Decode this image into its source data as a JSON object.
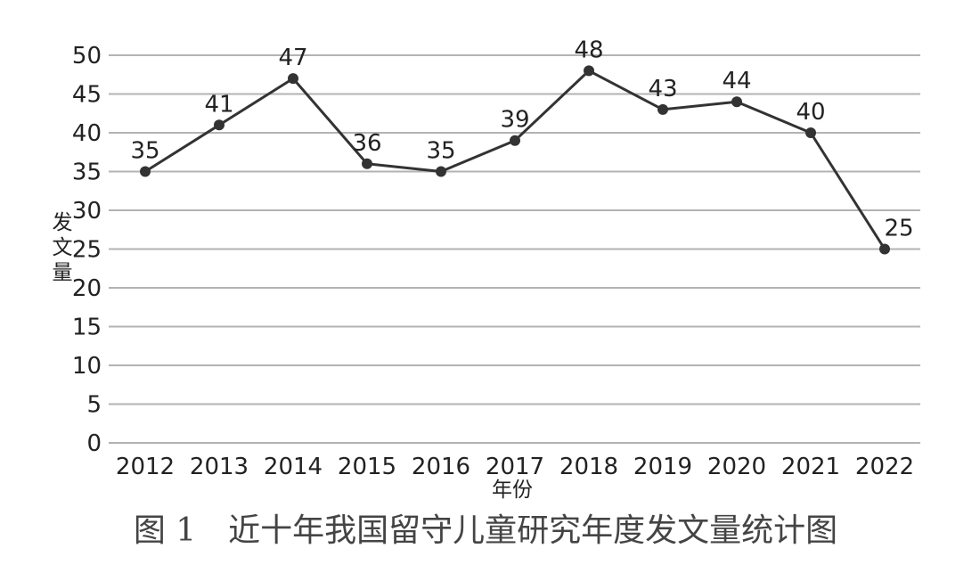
{
  "chart_data": {
    "type": "line",
    "categories": [
      "2012",
      "2013",
      "2014",
      "2015",
      "2016",
      "2017",
      "2018",
      "2019",
      "2020",
      "2021",
      "2022"
    ],
    "series": [
      {
        "values": [
          35,
          41,
          47,
          36,
          35,
          39,
          48,
          43,
          44,
          40,
          25
        ]
      }
    ],
    "data_labels": [
      "35",
      "41",
      "47",
      "36",
      "35",
      "39",
      "48",
      "43",
      "44",
      "40",
      "25"
    ],
    "y_ticks": [
      "0",
      "5",
      "10",
      "15",
      "20",
      "25",
      "30",
      "35",
      "40",
      "45",
      "50"
    ],
    "xlabel": "年份",
    "ylabel": "发文量",
    "ylim": [
      0,
      50
    ],
    "grid": true,
    "line_color": "#333333",
    "grid_color": "#b3b3b3"
  },
  "figure_caption": "图 1　近十年我国留守儿童研究年度发文量统计图"
}
